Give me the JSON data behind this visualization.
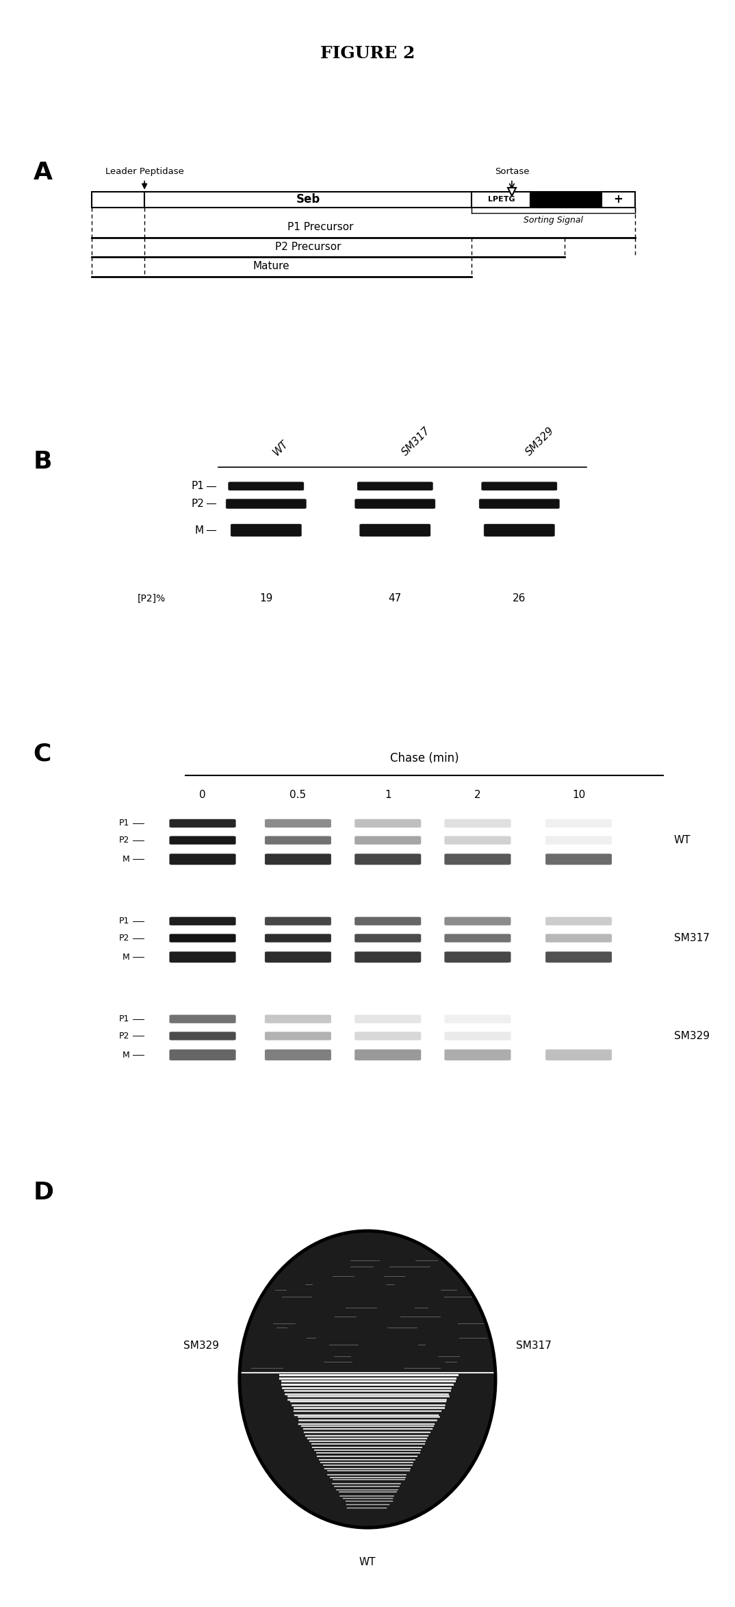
{
  "title": "FIGURE 2",
  "background_color": "#ffffff",
  "panel_A": {
    "leader_peptidase_label": "Leader Peptidase",
    "sortase_label": "Sortase",
    "seb_label": "Seb",
    "lpetg_label": "LPETG",
    "plus_label": "+",
    "sorting_signal_label": "Sorting Signal",
    "p1_label": "P1 Precursor",
    "p2_label": "P2 Precursor",
    "mature_label": "Mature"
  },
  "panel_B": {
    "columns": [
      "WT",
      "SM317",
      "SM329"
    ],
    "rows": [
      "P1",
      "P2",
      "M"
    ],
    "p2_percent_label": "[P2]%",
    "p2_values": [
      "19",
      "47",
      "26"
    ]
  },
  "panel_C": {
    "chase_label": "Chase (min)",
    "time_points": [
      "0",
      "0.5",
      "1",
      "2",
      "10"
    ],
    "strains": [
      "WT",
      "SM317",
      "SM329"
    ],
    "band_labels": [
      "P1",
      "P2",
      "M"
    ]
  },
  "panel_D": {
    "left_label": "SM329",
    "right_label": "SM317",
    "bottom_label": "WT"
  }
}
